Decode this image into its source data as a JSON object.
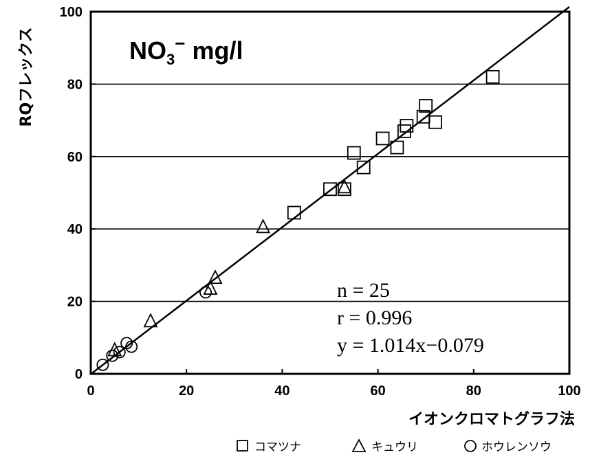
{
  "chart_data": {
    "type": "scatter",
    "title_parts": {
      "main": "NO",
      "sub": "3",
      "sup": "−",
      "unit": " mg/l"
    },
    "xlabel": "イオンクロマトグラフ法",
    "ylabel": "RQフレックス",
    "xlim": [
      0,
      100
    ],
    "ylim": [
      0,
      100
    ],
    "xticks": [
      0,
      20,
      40,
      60,
      80,
      100
    ],
    "yticks": [
      0,
      20,
      40,
      60,
      80,
      100
    ],
    "grid": "horizontal",
    "legend_position": "bottom",
    "series": [
      {
        "name": "コマツナ",
        "marker": "square",
        "points": [
          [
            42.5,
            44.5
          ],
          [
            50,
            51
          ],
          [
            53,
            51
          ],
          [
            55,
            61
          ],
          [
            57,
            57
          ],
          [
            61,
            65
          ],
          [
            64,
            62.5
          ],
          [
            65.5,
            67
          ],
          [
            66,
            68.5
          ],
          [
            69.5,
            71
          ],
          [
            70,
            74
          ],
          [
            72,
            69.5
          ],
          [
            84,
            82
          ]
        ]
      },
      {
        "name": "キュウリ",
        "marker": "triangle",
        "points": [
          [
            12.5,
            14.5
          ],
          [
            25,
            23.5
          ],
          [
            26,
            26.5
          ],
          [
            36,
            40.5
          ],
          [
            53,
            51.5
          ],
          [
            5,
            6.5
          ]
        ]
      },
      {
        "name": "ホウレンソウ",
        "marker": "circle",
        "points": [
          [
            2.5,
            2.5
          ],
          [
            4.5,
            5
          ],
          [
            6,
            6
          ],
          [
            7.5,
            8.5
          ],
          [
            8.5,
            7.5
          ],
          [
            24,
            22.5
          ]
        ]
      }
    ],
    "regression": {
      "slope": 1.014,
      "intercept": -0.079,
      "x_range": [
        0,
        100
      ]
    },
    "annotations": [
      "n = 25",
      "r = 0.996",
      "y = 1.014x−0.079"
    ]
  }
}
